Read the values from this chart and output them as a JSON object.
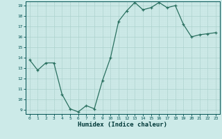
{
  "x": [
    0,
    1,
    2,
    3,
    4,
    5,
    6,
    7,
    8,
    9,
    10,
    11,
    12,
    13,
    14,
    15,
    16,
    17,
    18,
    19,
    20,
    21,
    22,
    23
  ],
  "y": [
    13.8,
    12.8,
    13.5,
    13.5,
    10.5,
    9.1,
    8.8,
    9.4,
    9.1,
    11.8,
    14.0,
    17.5,
    18.5,
    19.3,
    18.6,
    18.8,
    19.3,
    18.8,
    19.0,
    17.2,
    16.0,
    16.2,
    16.3,
    16.4
  ],
  "xlabel": "Humidex (Indice chaleur)",
  "ylim": [
    9,
    19
  ],
  "xlim": [
    -0.5,
    23.5
  ],
  "yticks": [
    9,
    10,
    11,
    12,
    13,
    14,
    15,
    16,
    17,
    18,
    19
  ],
  "xticks": [
    0,
    1,
    2,
    3,
    4,
    5,
    6,
    7,
    8,
    9,
    10,
    11,
    12,
    13,
    14,
    15,
    16,
    17,
    18,
    19,
    20,
    21,
    22,
    23
  ],
  "line_color": "#2a7060",
  "marker_color": "#2a7060",
  "bg_color": "#cceae8",
  "grid_major_color": "#b0d4d0",
  "grid_minor_color": "#c8e4e2",
  "tick_label_color": "#005050",
  "xlabel_color": "#003838",
  "spine_color": "#005050"
}
